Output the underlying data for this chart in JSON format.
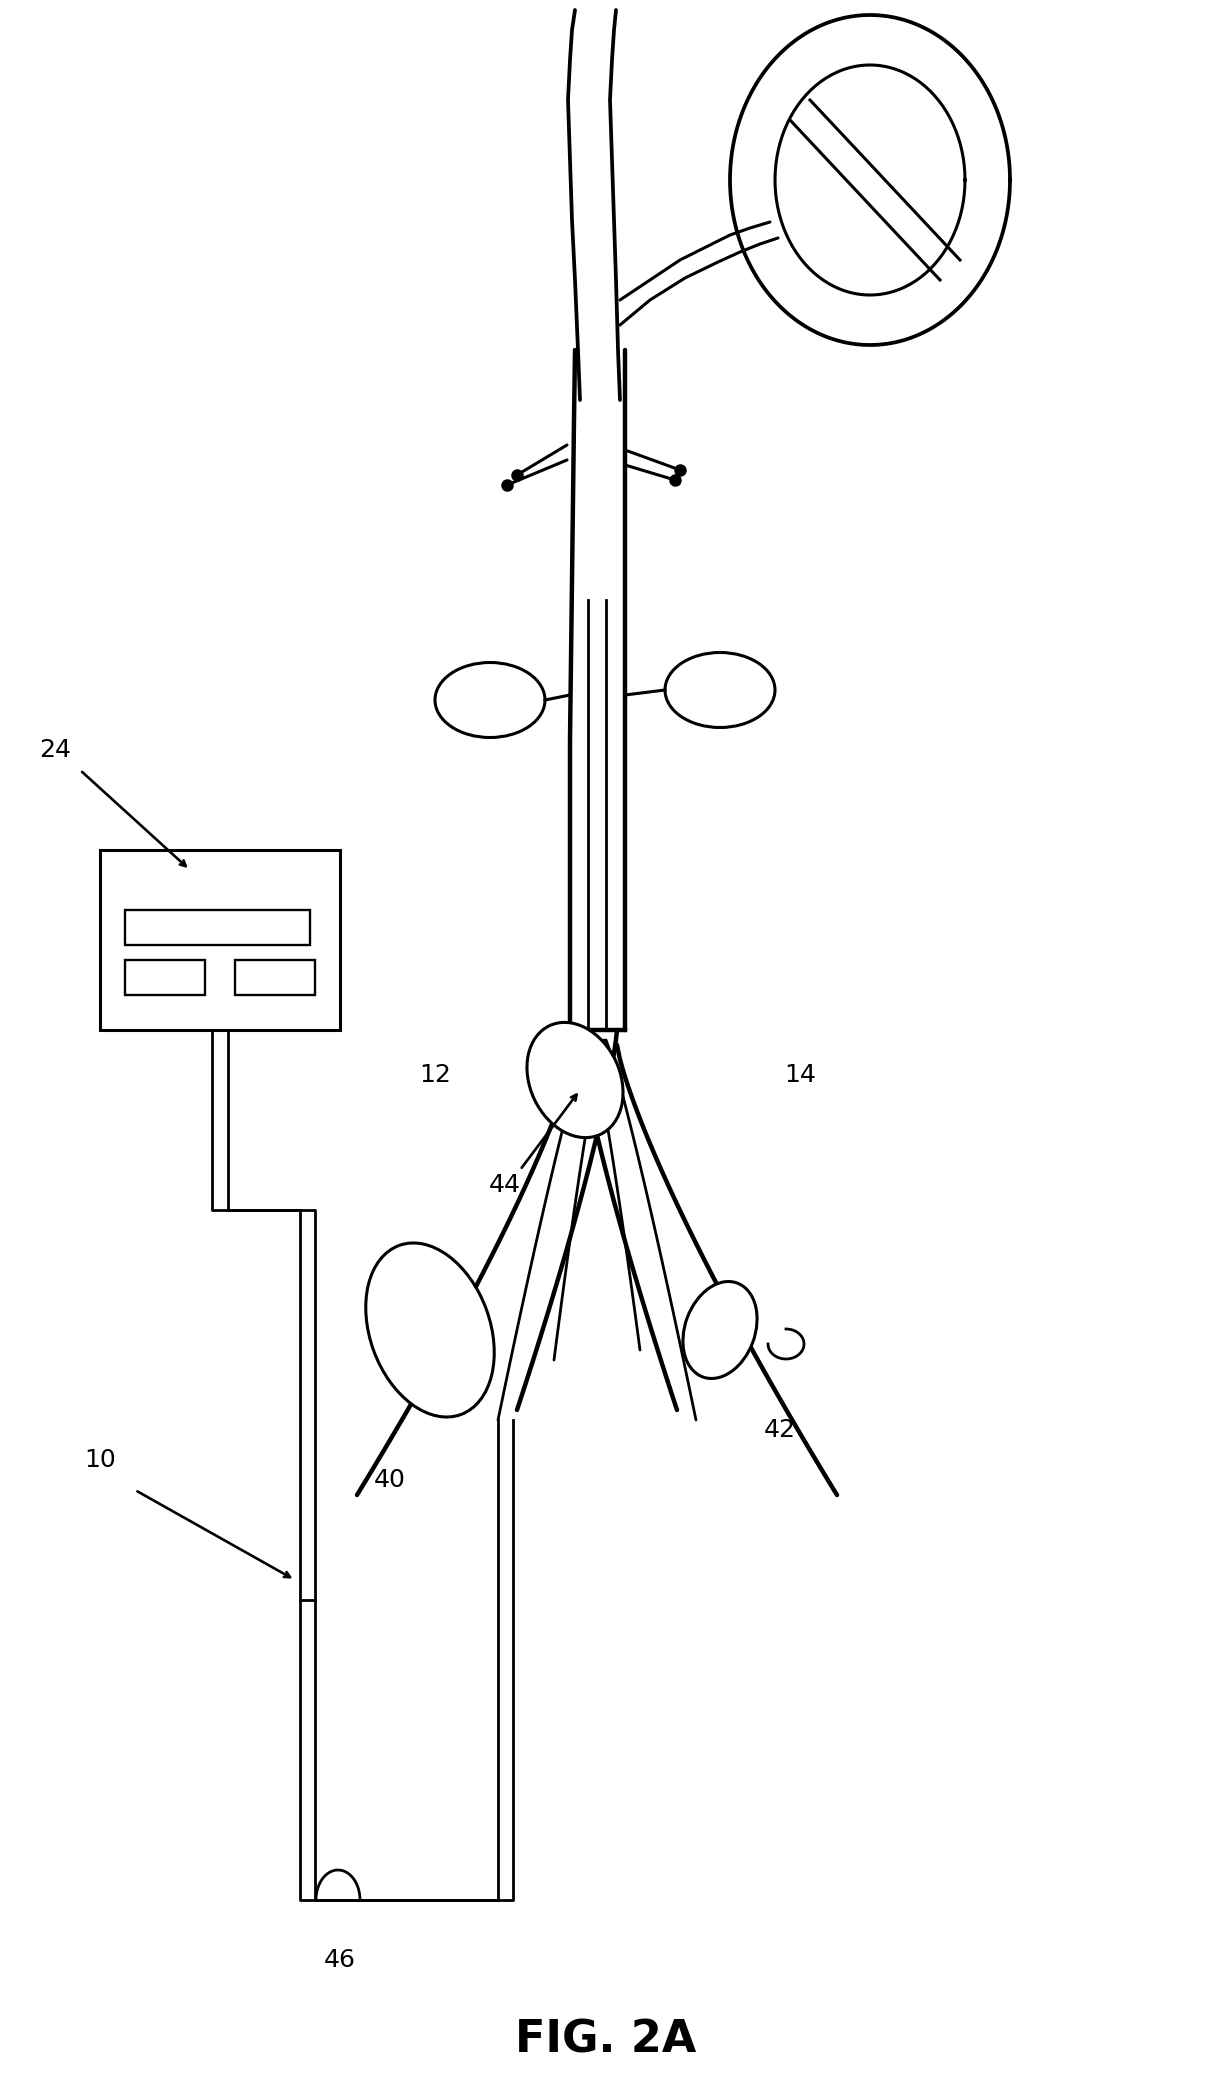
{
  "title": "FIG. 2A",
  "title_fontsize": 32,
  "title_fontweight": "bold",
  "background_color": "#ffffff",
  "line_color": "#000000",
  "line_width": 2.2,
  "label_fontsize": 18
}
